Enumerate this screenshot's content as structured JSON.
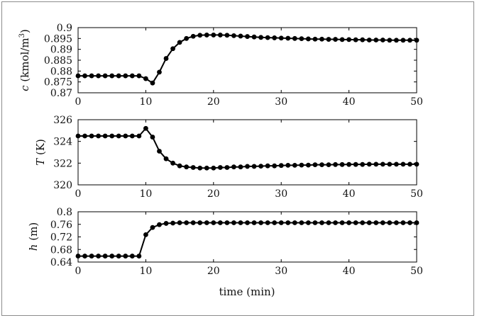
{
  "chart_data": [
    {
      "type": "line",
      "ylabel": "c (kmol/m³)",
      "xlim": [
        0,
        50
      ],
      "ylim": [
        0.87,
        0.9
      ],
      "xticks": [
        "0",
        "10",
        "20",
        "30",
        "40",
        "50"
      ],
      "yticks": [
        "0.87",
        "0.875",
        "0.88",
        "0.885",
        "0.89",
        "0.895",
        "0.9"
      ],
      "series": [
        {
          "x": [
            0,
            1,
            2,
            3,
            4,
            5,
            6,
            7,
            8,
            9,
            10,
            11,
            12,
            13,
            14,
            15,
            16,
            17,
            18,
            19,
            20,
            21,
            22,
            23,
            24,
            25,
            26,
            27,
            28,
            29,
            30,
            31,
            32,
            33,
            34,
            35,
            36,
            37,
            38,
            39,
            40,
            41,
            42,
            43,
            44,
            45,
            46,
            47,
            48,
            49,
            50
          ],
          "values": [
            0.8778,
            0.8778,
            0.8778,
            0.8778,
            0.8778,
            0.8778,
            0.8778,
            0.8778,
            0.8778,
            0.8778,
            0.8765,
            0.8745,
            0.8795,
            0.8858,
            0.8903,
            0.8932,
            0.895,
            0.896,
            0.8965,
            0.8966,
            0.8966,
            0.8966,
            0.8965,
            0.8963,
            0.8961,
            0.8959,
            0.8957,
            0.8955,
            0.8954,
            0.8953,
            0.8952,
            0.8951,
            0.895,
            0.8949,
            0.8948,
            0.8947,
            0.8947,
            0.8946,
            0.8946,
            0.8945,
            0.8945,
            0.8944,
            0.8944,
            0.8943,
            0.8943,
            0.8943,
            0.8942,
            0.8942,
            0.8942,
            0.8942,
            0.8942
          ]
        }
      ]
    },
    {
      "type": "line",
      "ylabel": "T (K)",
      "xlim": [
        0,
        50
      ],
      "ylim": [
        320,
        326
      ],
      "xticks": [
        "0",
        "10",
        "20",
        "30",
        "40",
        "50"
      ],
      "yticks": [
        "320",
        "322",
        "324",
        "326"
      ],
      "series": [
        {
          "x": [
            0,
            1,
            2,
            3,
            4,
            5,
            6,
            7,
            8,
            9,
            10,
            11,
            12,
            13,
            14,
            15,
            16,
            17,
            18,
            19,
            20,
            21,
            22,
            23,
            24,
            25,
            26,
            27,
            28,
            29,
            30,
            31,
            32,
            33,
            34,
            35,
            36,
            37,
            38,
            39,
            40,
            41,
            42,
            43,
            44,
            45,
            46,
            47,
            48,
            49,
            50
          ],
          "values": [
            324.5,
            324.5,
            324.5,
            324.5,
            324.5,
            324.5,
            324.5,
            324.5,
            324.5,
            324.5,
            325.2,
            324.4,
            323.1,
            322.4,
            322.0,
            321.75,
            321.65,
            321.6,
            321.55,
            321.55,
            321.55,
            321.6,
            321.6,
            321.65,
            321.65,
            321.7,
            321.7,
            321.72,
            321.75,
            321.75,
            321.78,
            321.8,
            321.8,
            321.82,
            321.82,
            321.85,
            321.85,
            321.85,
            321.87,
            321.87,
            321.88,
            321.88,
            321.88,
            321.9,
            321.9,
            321.9,
            321.9,
            321.9,
            321.9,
            321.9,
            321.9
          ]
        }
      ]
    },
    {
      "type": "line",
      "ylabel": "h (m)",
      "xlabel": "time (min)",
      "xlim": [
        0,
        50
      ],
      "ylim": [
        0.64,
        0.8
      ],
      "xticks": [
        "0",
        "10",
        "20",
        "30",
        "40",
        "50"
      ],
      "yticks": [
        "0.64",
        "0.68",
        "0.72",
        "0.76",
        "0.8"
      ],
      "series": [
        {
          "x": [
            0,
            1,
            2,
            3,
            4,
            5,
            6,
            7,
            8,
            9,
            10,
            11,
            12,
            13,
            14,
            15,
            16,
            17,
            18,
            19,
            20,
            21,
            22,
            23,
            24,
            25,
            26,
            27,
            28,
            29,
            30,
            31,
            32,
            33,
            34,
            35,
            36,
            37,
            38,
            39,
            40,
            41,
            42,
            43,
            44,
            45,
            46,
            47,
            48,
            49,
            50
          ],
          "values": [
            0.659,
            0.659,
            0.659,
            0.659,
            0.659,
            0.659,
            0.659,
            0.659,
            0.659,
            0.659,
            0.727,
            0.75,
            0.759,
            0.763,
            0.764,
            0.765,
            0.765,
            0.765,
            0.765,
            0.765,
            0.765,
            0.765,
            0.765,
            0.765,
            0.765,
            0.765,
            0.765,
            0.765,
            0.765,
            0.765,
            0.765,
            0.765,
            0.765,
            0.765,
            0.765,
            0.765,
            0.765,
            0.765,
            0.765,
            0.765,
            0.765,
            0.765,
            0.765,
            0.765,
            0.765,
            0.765,
            0.765,
            0.765,
            0.765,
            0.765,
            0.765
          ]
        }
      ]
    }
  ]
}
